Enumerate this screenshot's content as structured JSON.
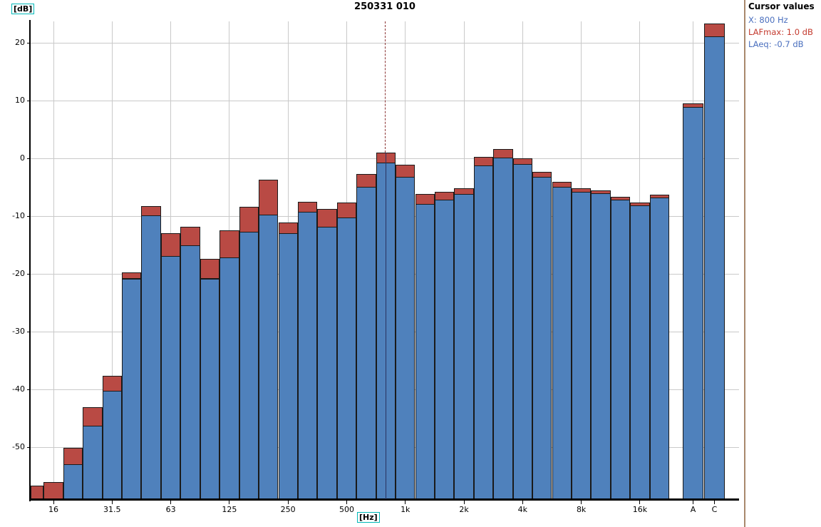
{
  "chart_data": {
    "type": "bar",
    "title": "250331 010",
    "ylabel": "[dB]",
    "xlabel": "[Hz]",
    "ylim": [
      -59,
      24
    ],
    "yticks": [
      20,
      10,
      0,
      -10,
      -20,
      -30,
      -40,
      -50
    ],
    "grid": true,
    "legend": "none",
    "series_meta": [
      {
        "key": "laeq",
        "name": "LAeq",
        "color": "#4F81BC"
      },
      {
        "key": "lafmax",
        "name": "LAFmax",
        "color": "#B94A44"
      }
    ],
    "bands": [
      {
        "freq": "12.5",
        "laeq": -59.0,
        "lafmax": -56.7
      },
      {
        "freq": "16",
        "laeq": -59.0,
        "lafmax": -56.0
      },
      {
        "freq": "20",
        "laeq": -53.0,
        "lafmax": -50.1
      },
      {
        "freq": "25",
        "laeq": -46.3,
        "lafmax": -43.1
      },
      {
        "freq": "31.5",
        "laeq": -40.2,
        "lafmax": -37.6
      },
      {
        "freq": "40",
        "laeq": -20.8,
        "lafmax": -19.7
      },
      {
        "freq": "50",
        "laeq": -9.9,
        "lafmax": -8.3
      },
      {
        "freq": "63",
        "laeq": -16.9,
        "lafmax": -12.9
      },
      {
        "freq": "80",
        "laeq": -15.1,
        "lafmax": -11.9
      },
      {
        "freq": "100",
        "laeq": -20.8,
        "lafmax": -17.4
      },
      {
        "freq": "125",
        "laeq": -17.1,
        "lafmax": -12.5
      },
      {
        "freq": "160",
        "laeq": -12.7,
        "lafmax": -8.4
      },
      {
        "freq": "200",
        "laeq": -9.7,
        "lafmax": -3.7
      },
      {
        "freq": "250",
        "laeq": -13.0,
        "lafmax": -11.1
      },
      {
        "freq": "315",
        "laeq": -9.2,
        "lafmax": -7.5
      },
      {
        "freq": "400",
        "laeq": -11.8,
        "lafmax": -8.8
      },
      {
        "freq": "500",
        "laeq": -10.2,
        "lafmax": -7.6
      },
      {
        "freq": "630",
        "laeq": -4.9,
        "lafmax": -2.7
      },
      {
        "freq": "800",
        "laeq": -0.7,
        "lafmax": 1.0
      },
      {
        "freq": "1k",
        "laeq": -3.2,
        "lafmax": -1.1
      },
      {
        "freq": "1.25k",
        "laeq": -7.9,
        "lafmax": -6.2
      },
      {
        "freq": "1.6k",
        "laeq": -7.2,
        "lafmax": -5.8
      },
      {
        "freq": "2k",
        "laeq": -6.2,
        "lafmax": -5.2
      },
      {
        "freq": "2.5k",
        "laeq": -1.2,
        "lafmax": 0.2
      },
      {
        "freq": "3.15k",
        "laeq": 0.1,
        "lafmax": 1.6
      },
      {
        "freq": "4k",
        "laeq": -1.0,
        "lafmax": 0.0
      },
      {
        "freq": "5k",
        "laeq": -3.2,
        "lafmax": -2.3
      },
      {
        "freq": "6.3k",
        "laeq": -4.9,
        "lafmax": -4.1
      },
      {
        "freq": "8k",
        "laeq": -5.8,
        "lafmax": -5.2
      },
      {
        "freq": "10k",
        "laeq": -6.0,
        "lafmax": -5.5
      },
      {
        "freq": "12.5k",
        "laeq": -7.1,
        "lafmax": -6.6
      },
      {
        "freq": "16k",
        "laeq": -8.1,
        "lafmax": -7.6
      },
      {
        "freq": "20k",
        "laeq": -6.8,
        "lafmax": -6.3
      }
    ],
    "xticks": [
      {
        "label": "16",
        "band": 1
      },
      {
        "label": "31.5",
        "band": 4
      },
      {
        "label": "63",
        "band": 7
      },
      {
        "label": "125",
        "band": 10
      },
      {
        "label": "250",
        "band": 13
      },
      {
        "label": "500",
        "band": 16
      },
      {
        "label": "1k",
        "band": 19
      },
      {
        "label": "2k",
        "band": 22
      },
      {
        "label": "4k",
        "band": 25
      },
      {
        "label": "8k",
        "band": 28
      },
      {
        "label": "16k",
        "band": 31
      }
    ],
    "totals": [
      {
        "label": "A",
        "laeq": 8.9,
        "lafmax": 9.5,
        "gridline": true
      },
      {
        "label": "C",
        "laeq": 21.1,
        "lafmax": 23.4,
        "gridline": false
      }
    ],
    "cursor": {
      "band_index": 18,
      "dashed_color": "#8B3434",
      "solid_color": "#2A3360"
    },
    "colors": {
      "grid": "#C9C9C9",
      "axis": "#000000",
      "bar_border": "#1A1A1A",
      "unit_box_border": "#00B8B8"
    }
  },
  "cursor_panel": {
    "title": "Cursor values",
    "lines": [
      {
        "label": "X",
        "text": "X: 800 Hz",
        "color": "#4A6FBE"
      },
      {
        "label": "LAFmax",
        "text": "LAFmax: 1.0 dB",
        "color": "#C43A2E"
      },
      {
        "label": "LAeq",
        "text": "LAeq: -0.7 dB",
        "color": "#4A6FBE"
      }
    ]
  }
}
